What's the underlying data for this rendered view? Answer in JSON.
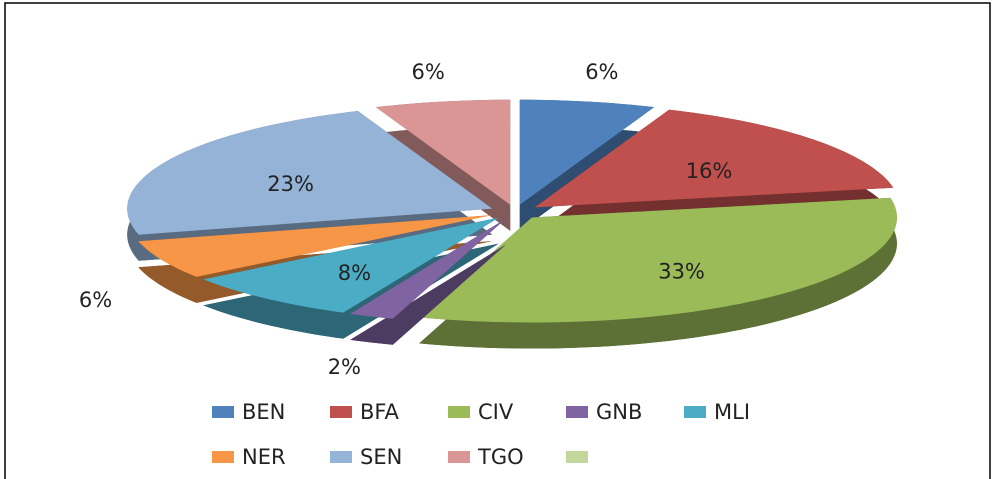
{
  "chart_data": {
    "type": "pie3d",
    "categories": [
      "BEN",
      "BFA",
      "CIV",
      "GNB",
      "MLI",
      "NER",
      "SEN",
      "TGO",
      null
    ],
    "values": [
      6,
      16,
      33,
      2,
      8,
      6,
      23,
      6,
      0
    ],
    "value_labels": [
      "6%",
      "16%",
      "33%",
      "2%",
      "8%",
      "6%",
      "23%",
      "6%",
      null
    ],
    "colors": [
      "#4f81bd",
      "#c0504d",
      "#9bbb59",
      "#8064a2",
      "#4bacc6",
      "#f79646",
      "#95b3d7",
      "#d99694",
      "#c3d69b"
    ],
    "legend": "bottom"
  }
}
